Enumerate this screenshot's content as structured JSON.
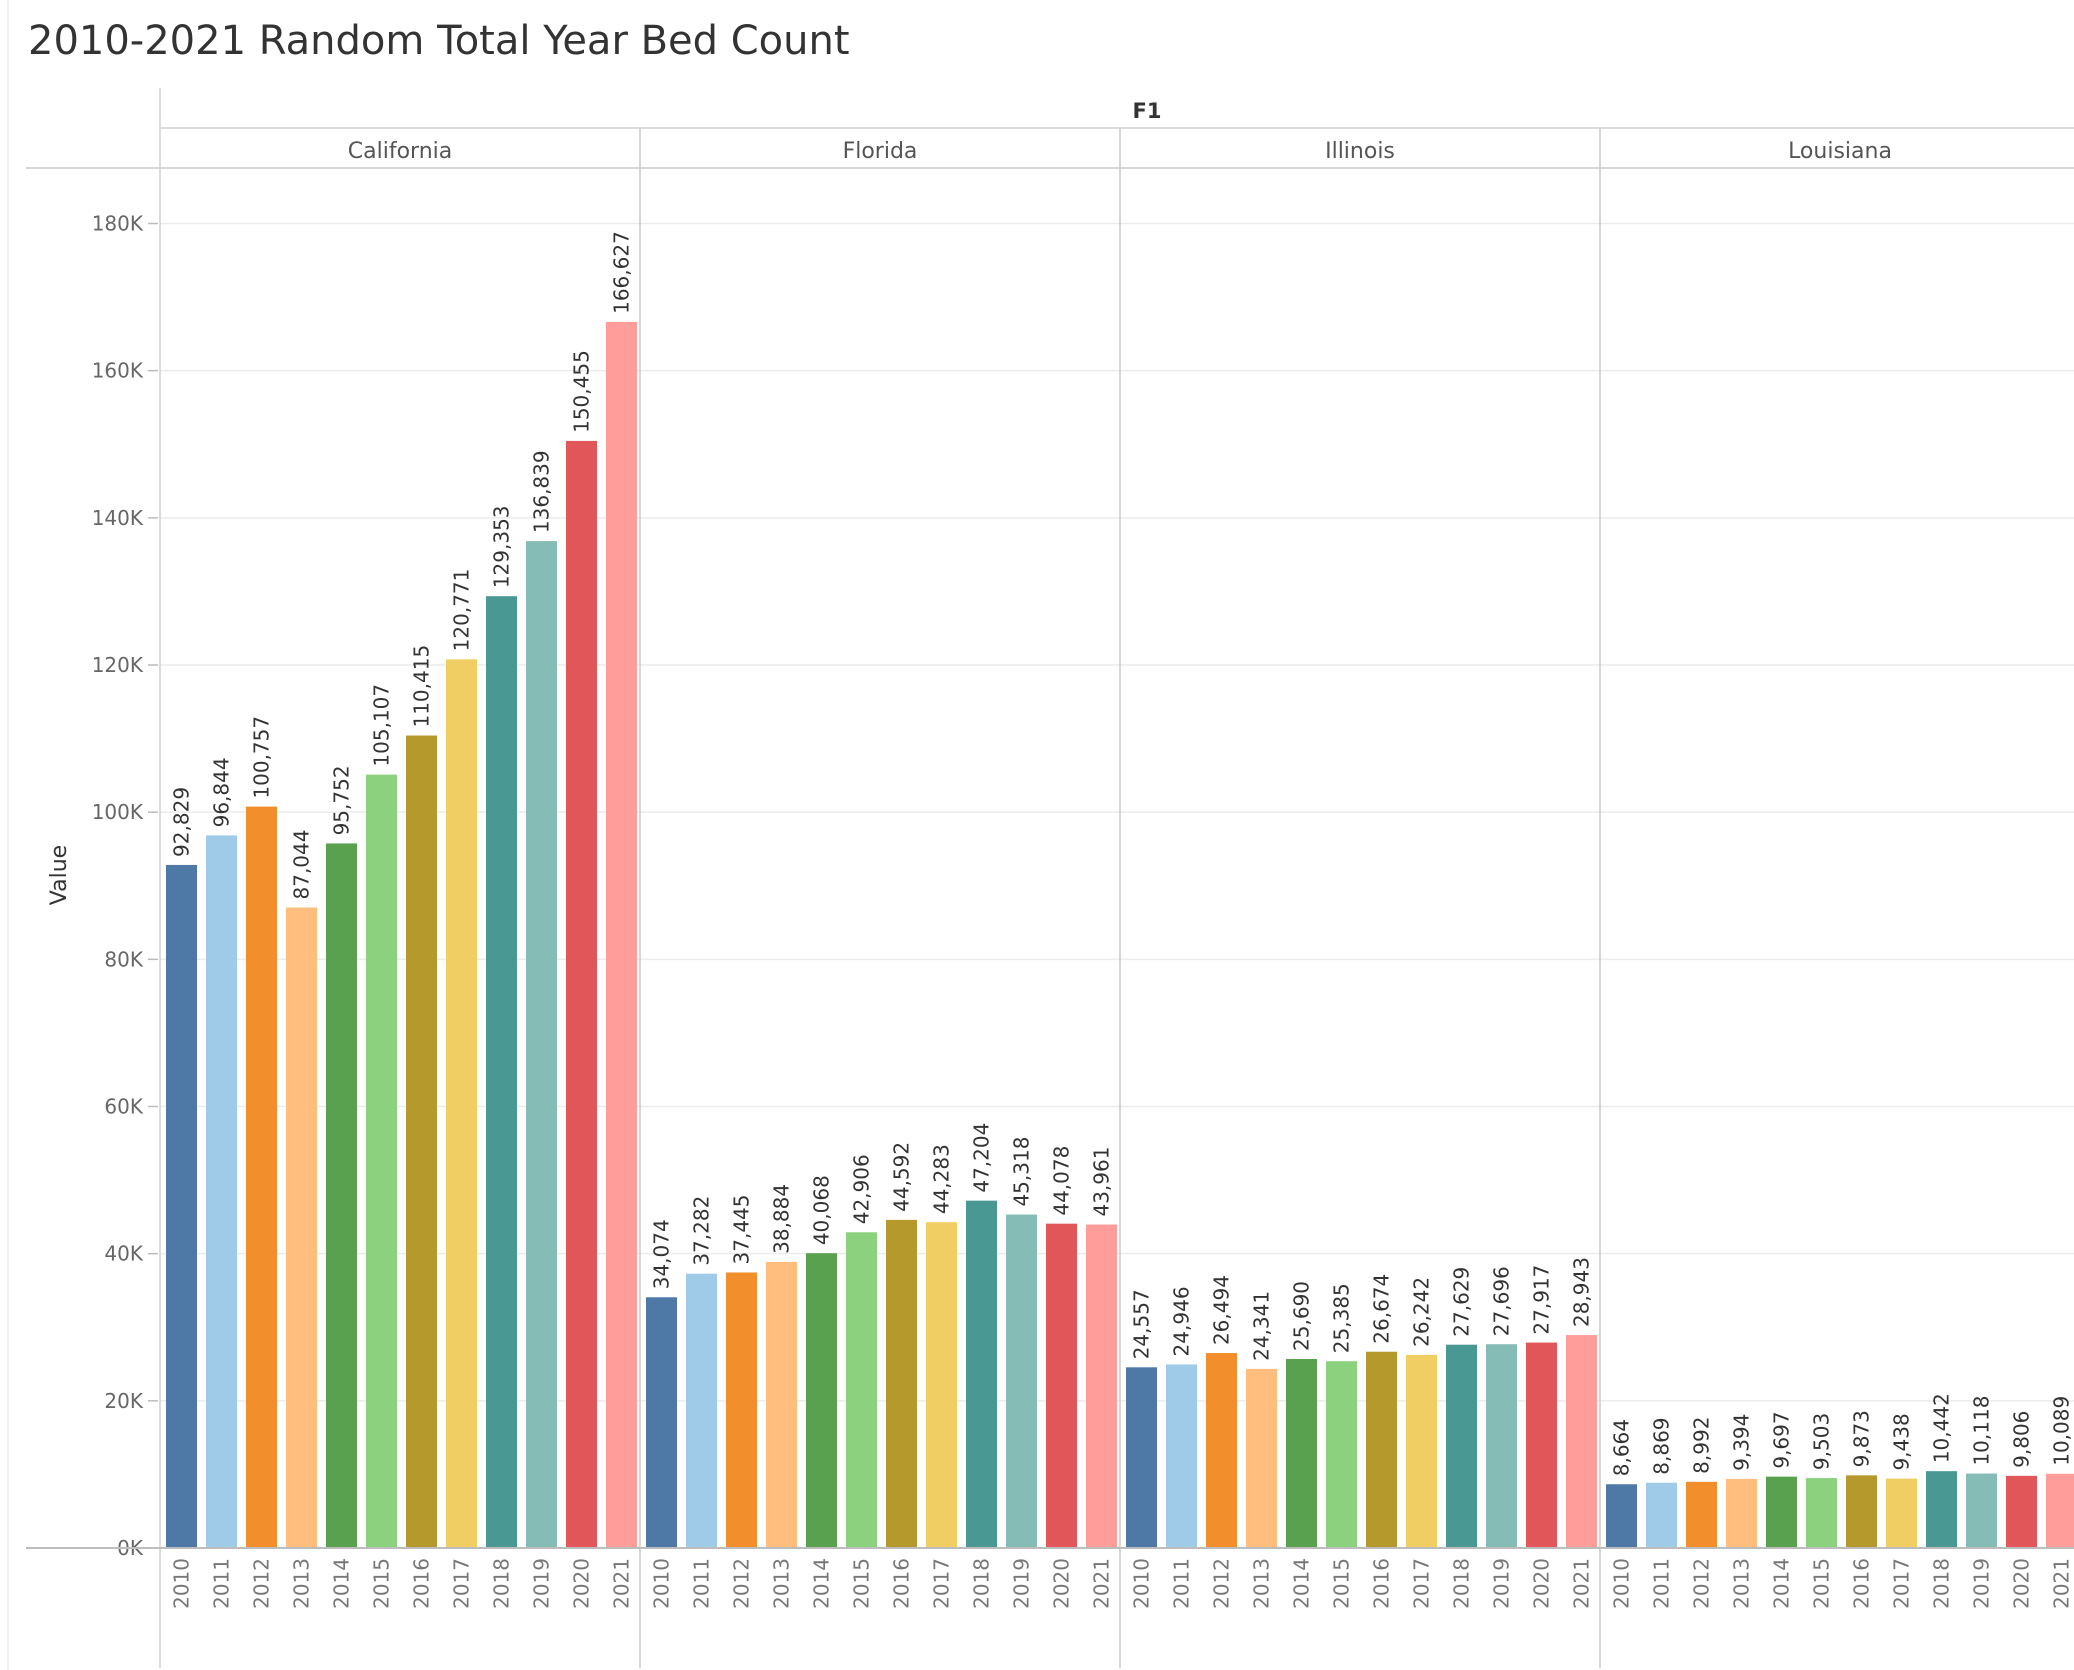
{
  "chart_data": {
    "type": "bar",
    "title": "2010-2021 Random Total Year Bed Count",
    "ylabel": "Value",
    "facet_label": "F1",
    "ylim": [
      0,
      187000
    ],
    "yticks": [
      0,
      20000,
      40000,
      60000,
      80000,
      100000,
      120000,
      140000,
      160000,
      180000
    ],
    "ytick_labels": [
      "0K",
      "20K",
      "40K",
      "60K",
      "80K",
      "100K",
      "120K",
      "140K",
      "160K",
      "180K"
    ],
    "grid": true,
    "categories": [
      "2010",
      "2011",
      "2012",
      "2013",
      "2014",
      "2015",
      "2016",
      "2017",
      "2018",
      "2019",
      "2020",
      "2021"
    ],
    "colors": [
      "#4e79a7",
      "#a0cbe8",
      "#f28e2b",
      "#ffbe7d",
      "#59a14f",
      "#8cd17d",
      "#b6992d",
      "#f1ce63",
      "#499894",
      "#86bcb6",
      "#e15759",
      "#ff9d9a"
    ],
    "panels": [
      {
        "name": "California",
        "values": [
          92829,
          96844,
          100757,
          87044,
          95752,
          105107,
          110415,
          120771,
          129353,
          136839,
          150455,
          166627
        ],
        "labels": [
          "92,829",
          "96,844",
          "100,757",
          "87,044",
          "95,752",
          "105,107",
          "110,415",
          "120,771",
          "129,353",
          "136,839",
          "150,455",
          "166,627"
        ]
      },
      {
        "name": "Florida",
        "values": [
          34074,
          37282,
          37445,
          38884,
          40068,
          42906,
          44592,
          44283,
          47204,
          45318,
          44078,
          43961
        ],
        "labels": [
          "34,074",
          "37,282",
          "37,445",
          "38,884",
          "40,068",
          "42,906",
          "44,592",
          "44,283",
          "47,204",
          "45,318",
          "44,078",
          "43,961"
        ]
      },
      {
        "name": "Illinois",
        "values": [
          24557,
          24946,
          26494,
          24341,
          25690,
          25385,
          26674,
          26242,
          27629,
          27696,
          27917,
          28943
        ],
        "labels": [
          "24,557",
          "24,946",
          "26,494",
          "24,341",
          "25,690",
          "25,385",
          "26,674",
          "26,242",
          "27,629",
          "27,696",
          "27,917",
          "28,943"
        ]
      },
      {
        "name": "Louisiana",
        "values": [
          8664,
          8869,
          8992,
          9394,
          9697,
          9503,
          9873,
          9438,
          10442,
          10118,
          9806,
          10089
        ],
        "labels": [
          "8,664",
          "8,869",
          "8,992",
          "9,394",
          "9,697",
          "9,503",
          "9,873",
          "9,438",
          "10,442",
          "10,118",
          "9,806",
          "10,089"
        ]
      }
    ]
  }
}
